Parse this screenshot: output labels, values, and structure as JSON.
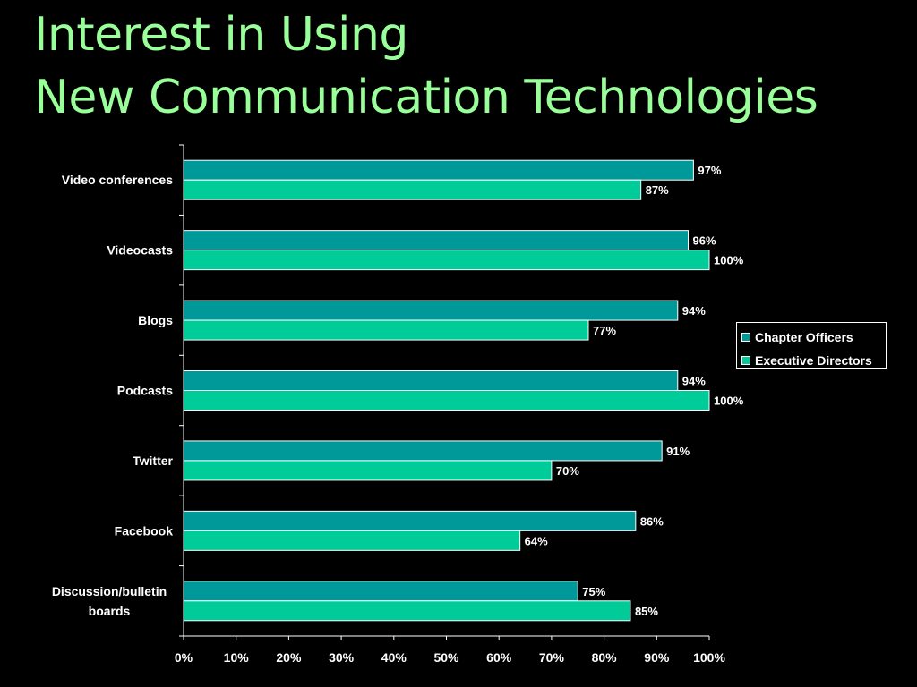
{
  "slide": {
    "title_line1": "Interest in Using",
    "title_line2": "New Communication Technologies"
  },
  "colors": {
    "title": "#99ff99",
    "chapter_officers": "#009999",
    "executive_directors": "#00cc99",
    "background": "#000000"
  },
  "chart_data": {
    "type": "bar",
    "orientation": "horizontal",
    "categories": [
      "Video conferences",
      "Videocasts",
      "Blogs",
      "Podcasts",
      "Twitter",
      "Facebook",
      "Discussion/bulletin boards"
    ],
    "category_lines": [
      [
        "Video conferences"
      ],
      [
        "Videocasts"
      ],
      [
        "Blogs"
      ],
      [
        "Podcasts"
      ],
      [
        "Twitter"
      ],
      [
        "Facebook"
      ],
      [
        "Discussion/bulletin",
        "boards"
      ]
    ],
    "series": [
      {
        "name": "Chapter Officers",
        "values": [
          97,
          96,
          94,
          94,
          91,
          86,
          75
        ],
        "labels": [
          "97%",
          "96%",
          "94%",
          "94%",
          "91%",
          "86%",
          "75%"
        ]
      },
      {
        "name": "Executive Directors",
        "values": [
          87,
          100,
          77,
          100,
          70,
          64,
          85
        ],
        "labels": [
          "87%",
          "100%",
          "77%",
          "100%",
          "70%",
          "64%",
          "85%"
        ]
      }
    ],
    "xlim": [
      0,
      100
    ],
    "xticks": [
      0,
      10,
      20,
      30,
      40,
      50,
      60,
      70,
      80,
      90,
      100
    ],
    "xtick_labels": [
      "0%",
      "10%",
      "20%",
      "30%",
      "40%",
      "50%",
      "60%",
      "70%",
      "80%",
      "90%",
      "100%"
    ],
    "xlabel": "",
    "ylabel": "",
    "grid": false,
    "legend_position": "right"
  }
}
